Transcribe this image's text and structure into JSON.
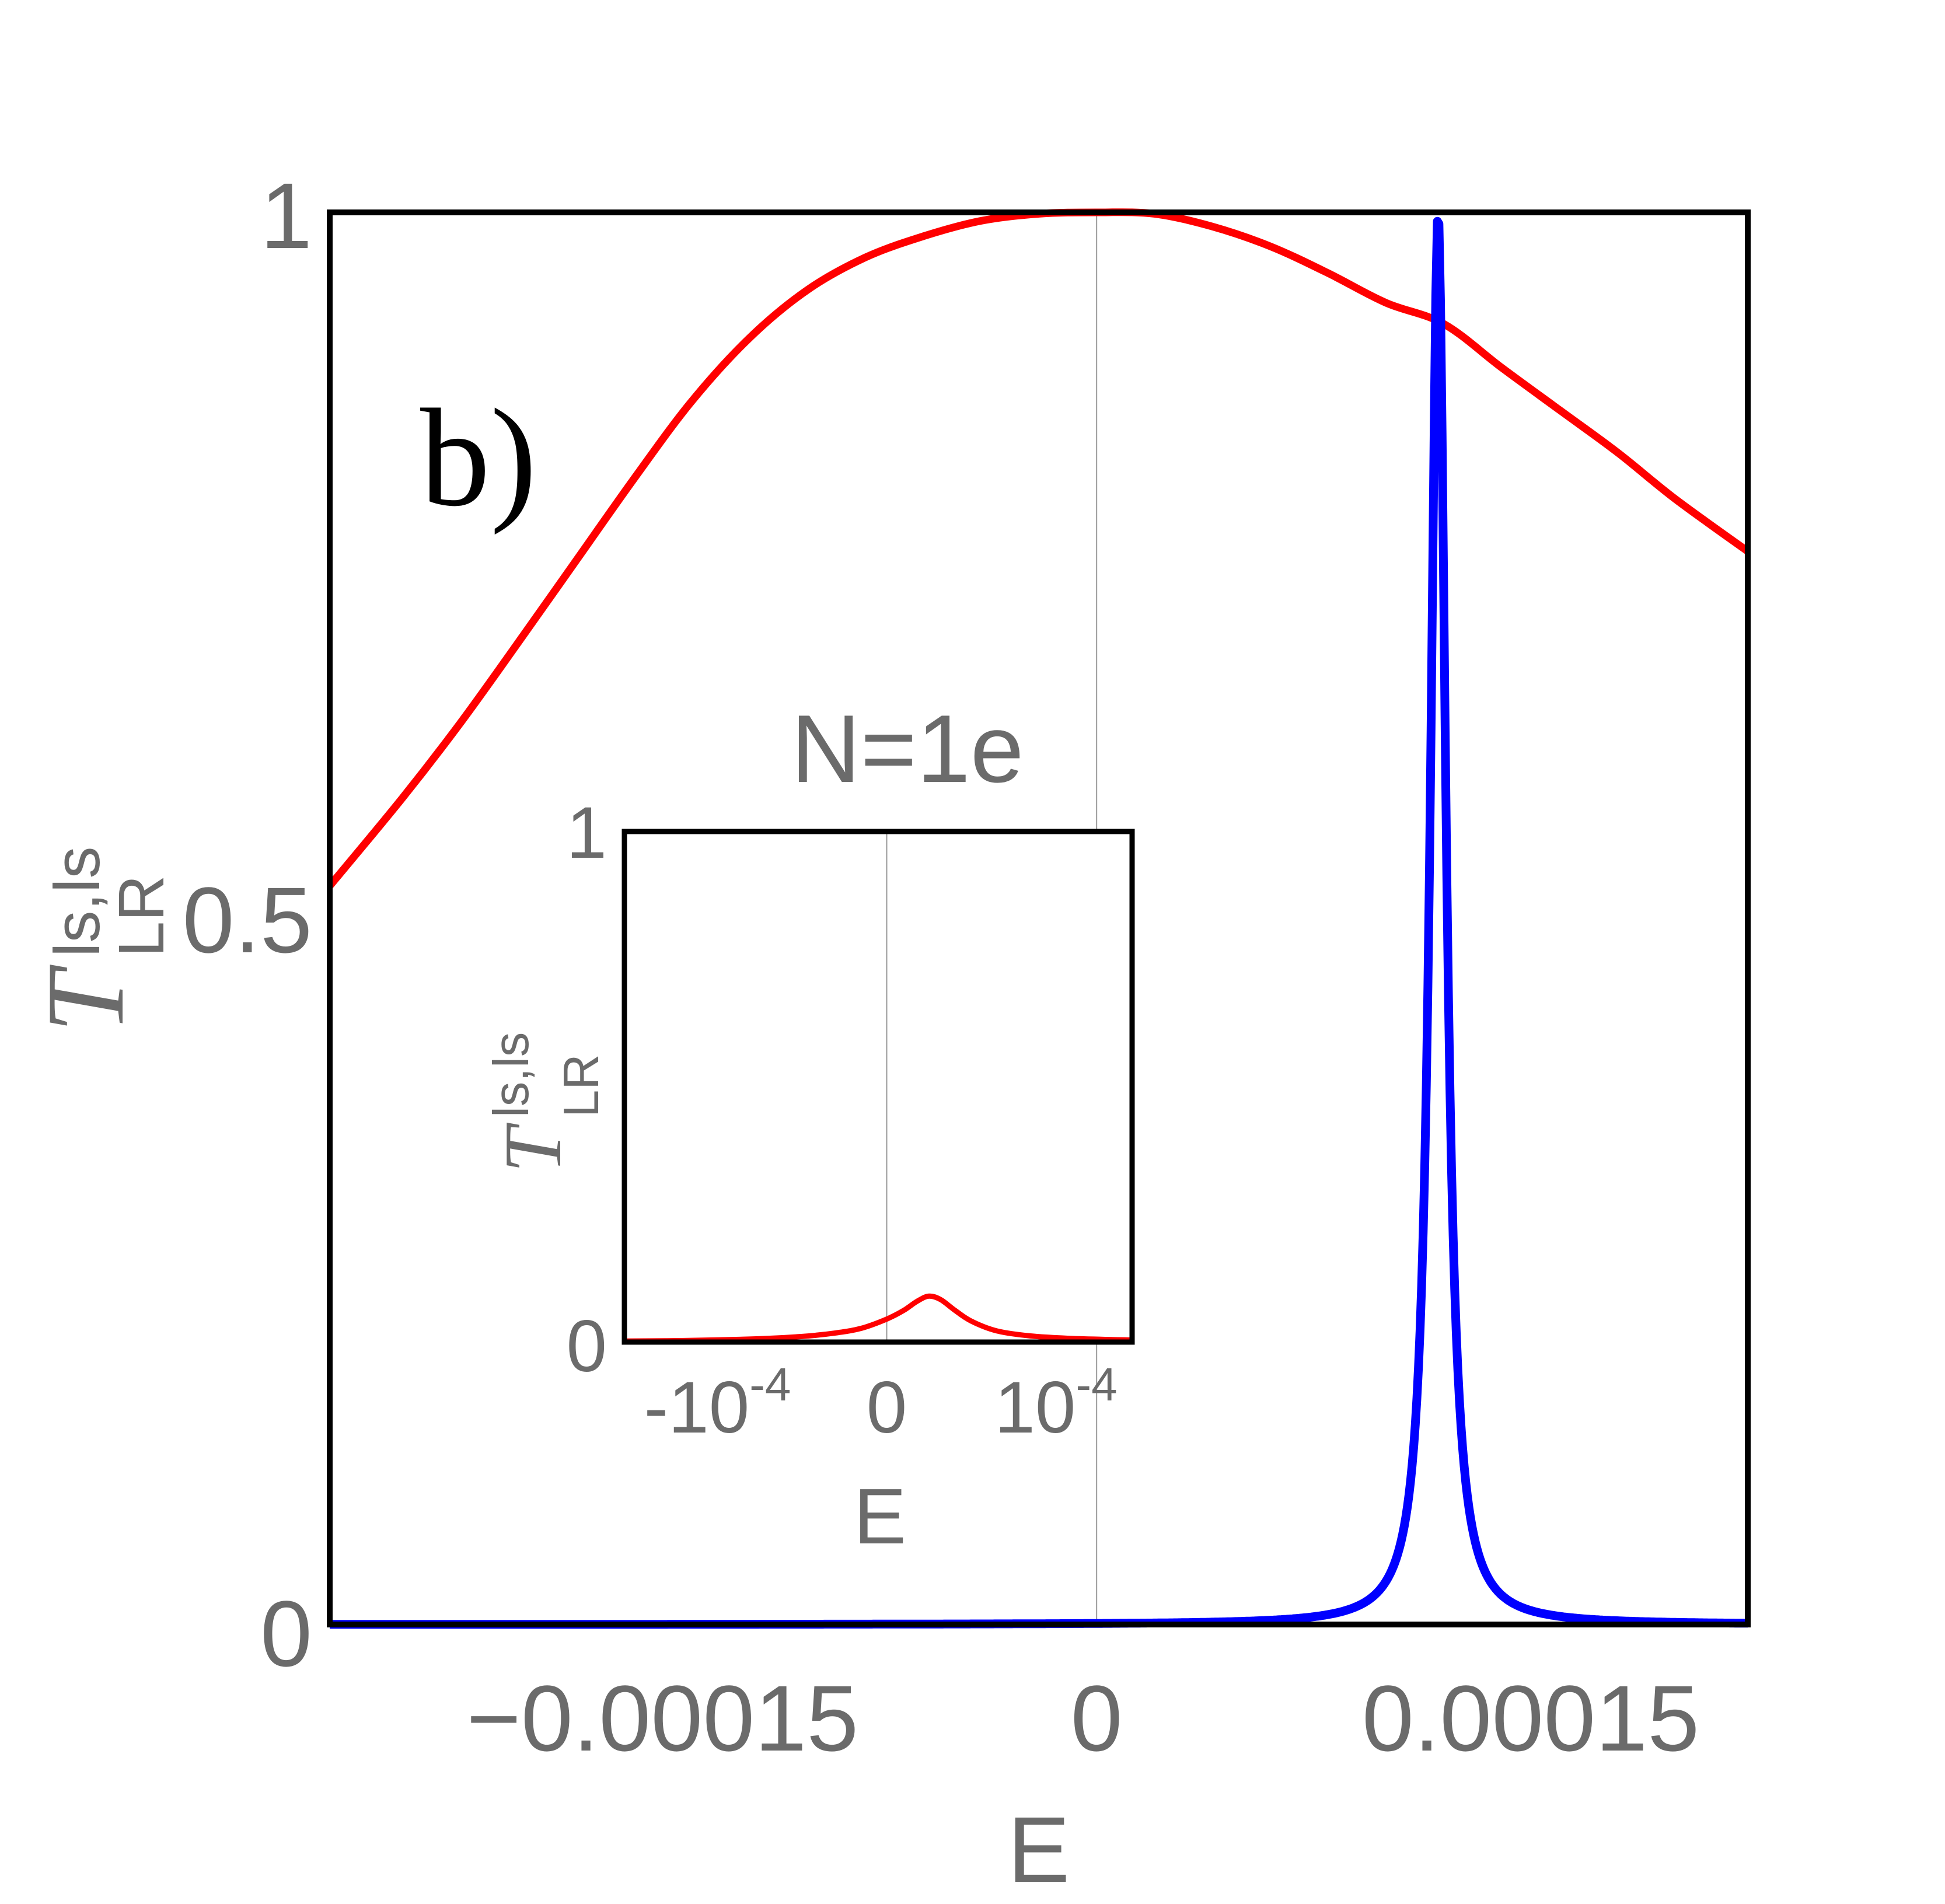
{
  "colors": {
    "frame": "#000000",
    "text": "#6b6b6b",
    "zero_line": "#9a9a9a",
    "red_series": "#ff0000",
    "blue_series": "#0000ff"
  },
  "chart_data": [
    {
      "id": "main",
      "type": "line",
      "panel_label": "b)",
      "xlabel": "E",
      "ylabel_main": "T",
      "ylabel_sup": "ls,ls",
      "ylabel_sub": "LR",
      "xlim": [
        -0.000265,
        0.000225
      ],
      "ylim": [
        0,
        1
      ],
      "x_tick_values": [
        -0.00015,
        0,
        0.00015
      ],
      "x_tick_labels": [
        "−0.00015",
        "0",
        "0.00015"
      ],
      "y_tick_values": [
        0,
        0.5,
        1
      ],
      "y_tick_labels": [
        "0",
        "0.5",
        "1"
      ],
      "series": [
        {
          "name": "red",
          "color": "#ff0000",
          "points": [
            [
              -0.000265,
              0.523
            ],
            [
              -0.00024,
              0.585
            ],
            [
              -0.00022,
              0.638
            ],
            [
              -0.0002,
              0.695
            ],
            [
              -0.00018,
              0.753
            ],
            [
              -0.00016,
              0.811
            ],
            [
              -0.00014,
              0.866
            ],
            [
              -0.00012,
              0.911
            ],
            [
              -0.0001,
              0.945
            ],
            [
              -8e-05,
              0.968
            ],
            [
              -6e-05,
              0.983
            ],
            [
              -4e-05,
              0.994
            ],
            [
              -2e-05,
              0.999
            ],
            [
              0.0,
              1.0
            ],
            [
              2e-05,
              0.999
            ],
            [
              4e-05,
              0.99
            ],
            [
              6e-05,
              0.976
            ],
            [
              8e-05,
              0.957
            ],
            [
              0.0001,
              0.936
            ],
            [
              0.00012,
              0.921
            ],
            [
              0.00014,
              0.89
            ],
            [
              0.00016,
              0.86
            ],
            [
              0.00018,
              0.83
            ],
            [
              0.0002,
              0.797
            ],
            [
              0.000225,
              0.76
            ]
          ]
        },
        {
          "name": "blue",
          "color": "#0000ff",
          "peak_x": 0.000118,
          "peak_y": 1.0,
          "half_width": 3.2e-06
        }
      ]
    },
    {
      "id": "inset",
      "type": "line",
      "title": "N=1e",
      "xlabel": "E",
      "ylabel_main": "T",
      "ylabel_sup": "ls,ls",
      "ylabel_sub": "LR",
      "xlim": [
        -0.000155,
        0.000145
      ],
      "ylim": [
        0,
        1
      ],
      "x_ticks": [
        {
          "value": -0.0001,
          "base": "-10",
          "exp": "-4"
        },
        {
          "value": 0,
          "base": "0",
          "exp": ""
        },
        {
          "value": 0.0001,
          "base": "10",
          "exp": "-4"
        }
      ],
      "y_tick_values": [
        0,
        1
      ],
      "y_tick_labels": [
        "0",
        "1"
      ],
      "series": [
        {
          "name": "red",
          "color": "#ff0000",
          "points": [
            [
              -0.000155,
              0.002
            ],
            [
              -0.00012,
              0.003
            ],
            [
              -8e-05,
              0.006
            ],
            [
              -5e-05,
              0.011
            ],
            [
              -3e-05,
              0.018
            ],
            [
              -1.5e-05,
              0.027
            ],
            [
              0.0,
              0.045
            ],
            [
              1e-05,
              0.062
            ],
            [
              1.8e-05,
              0.08
            ],
            [
              2.5e-05,
              0.09
            ],
            [
              3.2e-05,
              0.083
            ],
            [
              4e-05,
              0.063
            ],
            [
              5e-05,
              0.041
            ],
            [
              6.5e-05,
              0.022
            ],
            [
              8.5e-05,
              0.012
            ],
            [
              0.00011,
              0.007
            ],
            [
              0.000145,
              0.004
            ]
          ]
        }
      ]
    }
  ]
}
